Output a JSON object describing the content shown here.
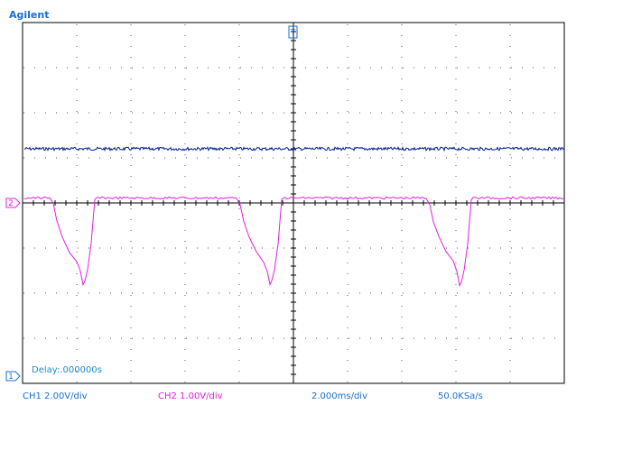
{
  "header": {
    "brand": "Agilent"
  },
  "screen": {
    "trigger_marker": "T",
    "ch2_marker": "2",
    "ch1_marker": "1",
    "delay": "Delay:.000000s"
  },
  "status_bar": {
    "ch1": "CH1 2.00V/div",
    "ch2": "CH2 1.00V/div",
    "timebase": "2.000ms/div",
    "sample_rate": "50.0KSa/s"
  }
}
